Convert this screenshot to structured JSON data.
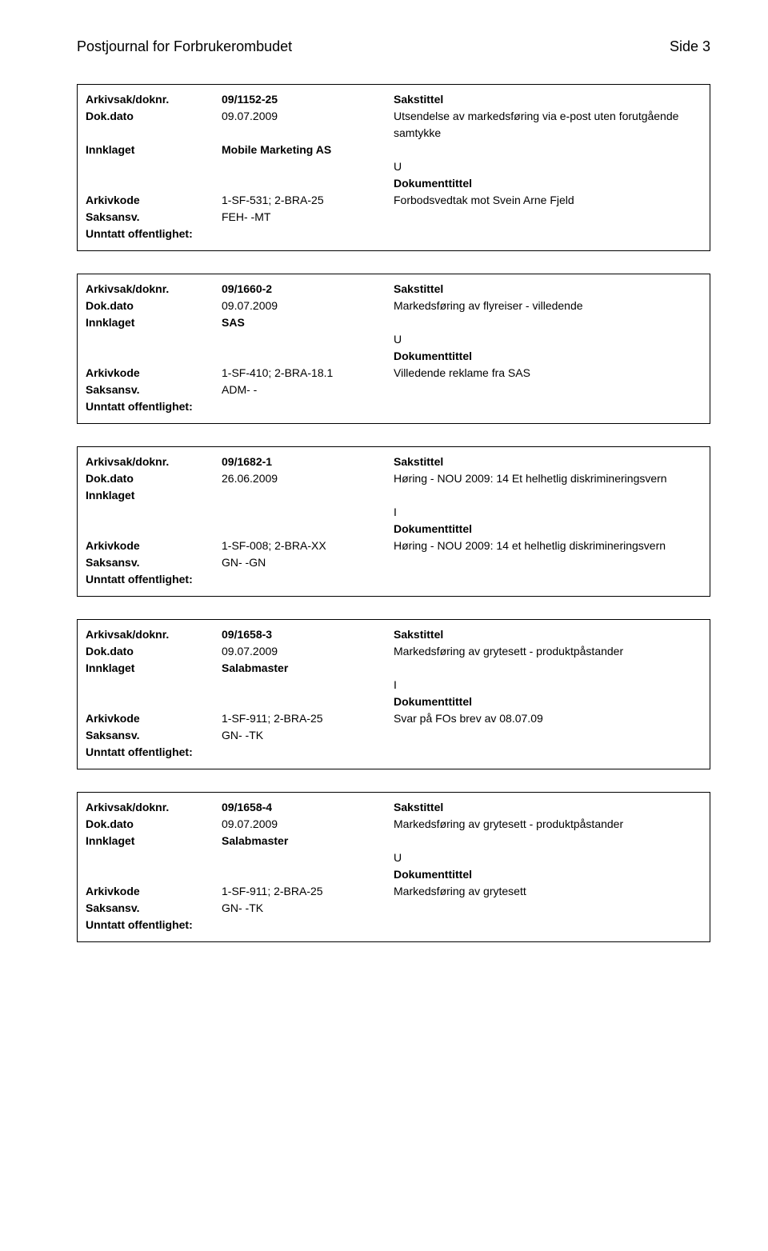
{
  "header": {
    "journal_title": "Postjournal for Forbrukerombudet",
    "page_label": "Side 3"
  },
  "labels": {
    "arkivsak": "Arkivsak/doknr.",
    "dokdato": "Dok.dato",
    "innklaget": "Innklaget",
    "arkivkode": "Arkivkode",
    "saksansv": "Saksansv.",
    "unntatt": "Unntatt offentlighet:",
    "sakstittel": "Sakstittel",
    "dokumenttittel": "Dokumenttittel"
  },
  "records": [
    {
      "arkivsak": "09/1152-25",
      "dokdato": "09.07.2009",
      "sakstittel": "Utsendelse av markedsføring via e-post uten forutgående samtykke",
      "innklaget": "Mobile Marketing AS",
      "type": "U",
      "arkivkode": "1-SF-531; 2-BRA-25",
      "doktext": "Forbodsvedtak mot Svein Arne Fjeld",
      "saksansv": "FEH- -MT",
      "unntatt": ""
    },
    {
      "arkivsak": "09/1660-2",
      "dokdato": "09.07.2009",
      "sakstittel": "Markedsføring av flyreiser - villedende",
      "innklaget": "SAS",
      "type": "U",
      "arkivkode": "1-SF-410; 2-BRA-18.1",
      "doktext": "Villedende reklame fra SAS",
      "saksansv": "ADM- -",
      "unntatt": ""
    },
    {
      "arkivsak": "09/1682-1",
      "dokdato": "26.06.2009",
      "sakstittel": "Høring - NOU 2009: 14 Et helhetlig diskrimineringsvern",
      "innklaget": "",
      "type": "I",
      "arkivkode": "1-SF-008; 2-BRA-XX",
      "doktext": "Høring - NOU 2009: 14 et helhetlig diskrimineringsvern",
      "saksansv": "GN- -GN",
      "unntatt": ""
    },
    {
      "arkivsak": "09/1658-3",
      "dokdato": "09.07.2009",
      "sakstittel": "Markedsføring av grytesett - produktpåstander",
      "innklaget": "Salabmaster",
      "type": "I",
      "arkivkode": "1-SF-911; 2-BRA-25",
      "doktext": "Svar på FOs brev av 08.07.09",
      "saksansv": "GN- -TK",
      "unntatt": ""
    },
    {
      "arkivsak": "09/1658-4",
      "dokdato": "09.07.2009",
      "sakstittel": "Markedsføring av grytesett - produktpåstander",
      "innklaget": "Salabmaster",
      "type": "U",
      "arkivkode": "1-SF-911; 2-BRA-25",
      "doktext": "Markedsføring av grytesett",
      "saksansv": "GN- -TK",
      "unntatt": ""
    }
  ]
}
